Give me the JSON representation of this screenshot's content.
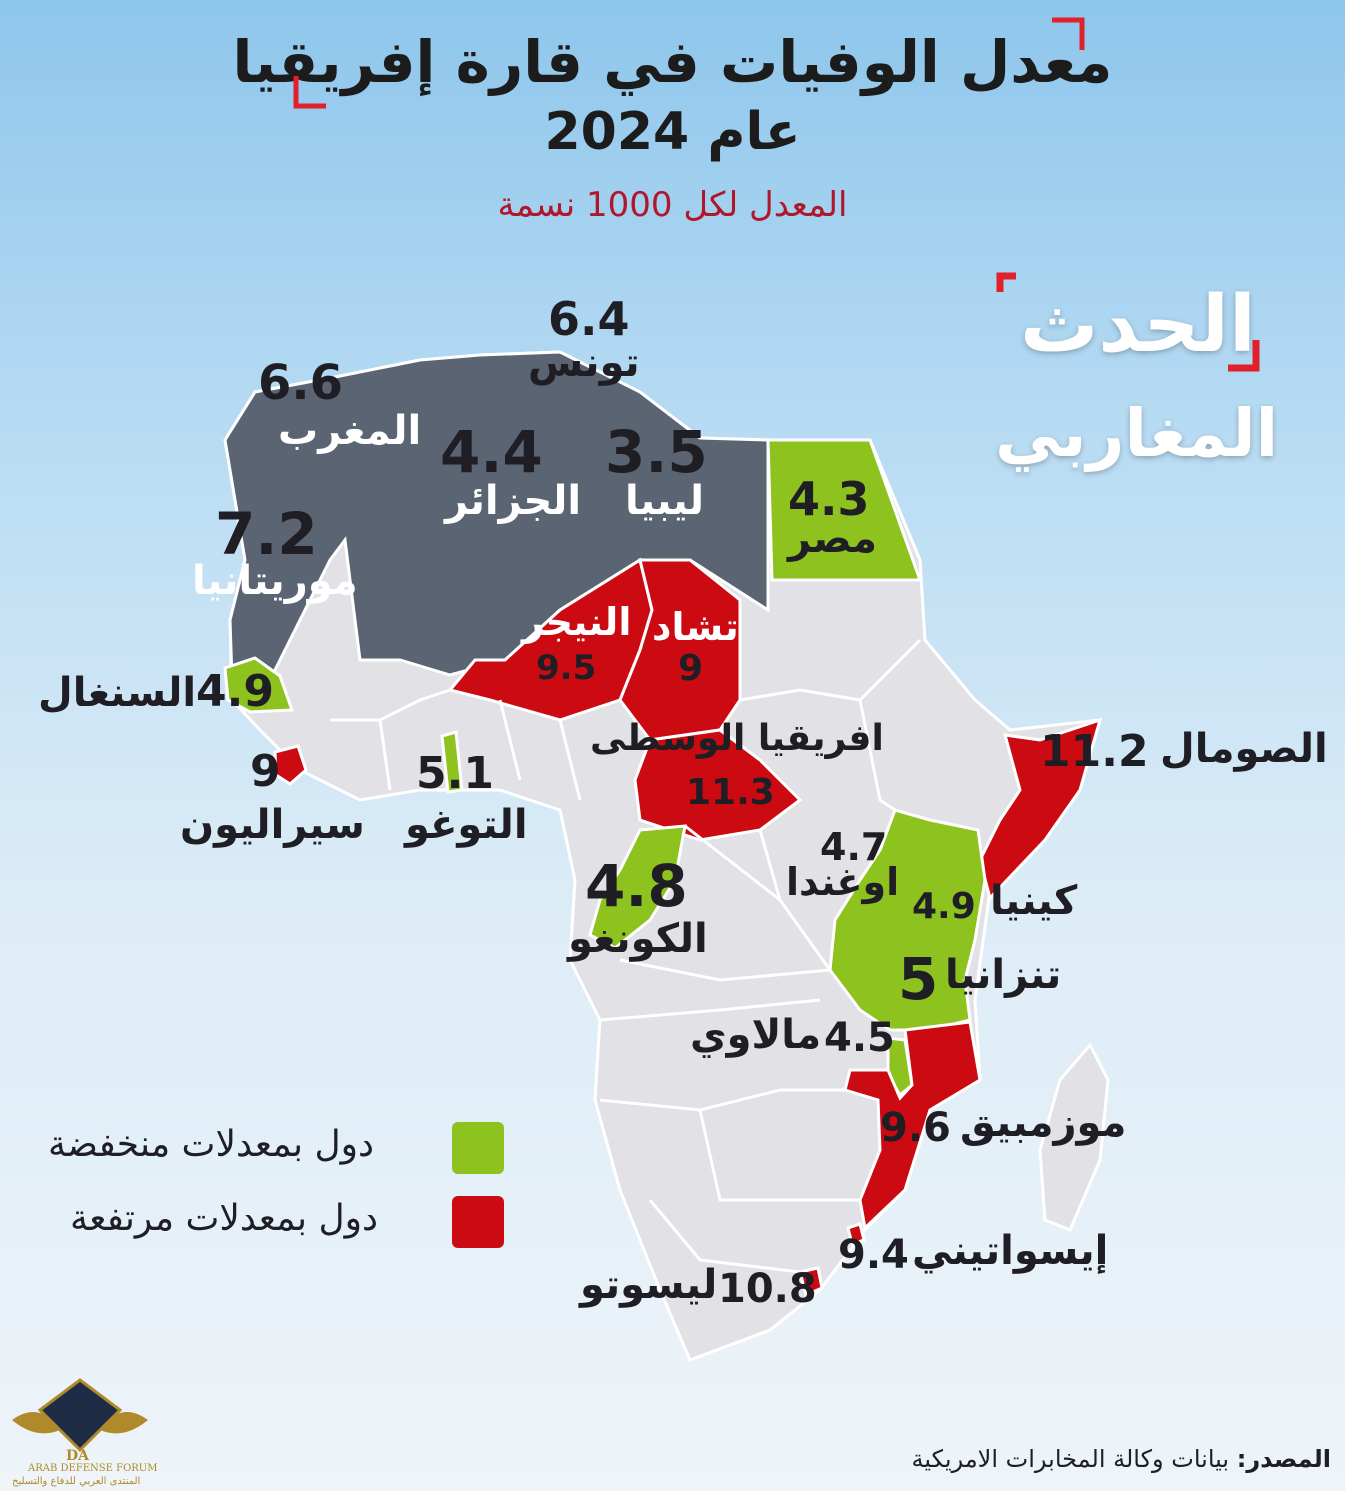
{
  "header": {
    "title_line1": "معدل الوفيات في قارة إفريقيا",
    "title_line2": "عام 2024",
    "subtitle": "المعدل لكل 1000 نسمة"
  },
  "brand": {
    "name_top": "الحدث",
    "name_bottom": "المغاربي"
  },
  "countries": {
    "tunisia": {
      "name": "تونس",
      "value": "6.4",
      "group": "north"
    },
    "morocco": {
      "name": "المغرب",
      "value": "6.6",
      "group": "north"
    },
    "algeria": {
      "name": "الجزائر",
      "value": "4.4",
      "group": "north"
    },
    "libya": {
      "name": "ليبيا",
      "value": "3.5",
      "group": "north"
    },
    "mauritania": {
      "name": "موريتانيا",
      "value": "7.2",
      "group": "north"
    },
    "egypt": {
      "name": "مصر",
      "value": "4.3",
      "group": "low"
    },
    "niger": {
      "name": "النيجر",
      "value": "9.5",
      "group": "high"
    },
    "chad": {
      "name": "تشاد",
      "value": "9",
      "group": "high"
    },
    "senegal": {
      "name": "السنغال",
      "value": "4.9",
      "group": "low"
    },
    "car": {
      "name": "افريقيا الوسطى",
      "value": "11.3",
      "group": "high"
    },
    "somalia": {
      "name": "الصومال",
      "value": "11.2",
      "group": "high"
    },
    "sierra_leone": {
      "name": "سيراليون",
      "value": "9",
      "group": "high"
    },
    "togo": {
      "name": "التوغو",
      "value": "5.1",
      "group": "low"
    },
    "uganda": {
      "name": "اوغندا",
      "value": "4.7",
      "group": "low"
    },
    "kenya": {
      "name": "كينيا",
      "value": "4.9",
      "group": "low"
    },
    "congo": {
      "name": "الكونغو",
      "value": "4.8",
      "group": "low"
    },
    "tanzania": {
      "name": "تنزانيا",
      "value": "5",
      "group": "low"
    },
    "malawi": {
      "name": "مالاوي",
      "value": "4.5",
      "group": "low"
    },
    "mozambique": {
      "name": "موزمبيق",
      "value": "9.6",
      "group": "high"
    },
    "eswatini": {
      "name": "إيسواتيني",
      "value": "9.4",
      "group": "high"
    },
    "lesotho": {
      "name": "ليسوتو",
      "value": "10.8",
      "group": "high"
    }
  },
  "legend": {
    "low_label": "دول بمعدلات منخفضة",
    "high_label": "دول بمعدلات مرتفعة"
  },
  "colors": {
    "low": "#8dc21f",
    "high": "#cc0a12",
    "north": "#5b6472",
    "other": "#e1e1e6",
    "brand_red": "#e0202a"
  },
  "source": {
    "label": "المصدر:",
    "text": "بيانات وكالة المخابرات الامريكية"
  },
  "logo": {
    "initials": "DA",
    "name_en": "ARAB DEFENSE FORUM",
    "name_ar": "المنتدى العربي للدفاع والتسليح"
  }
}
